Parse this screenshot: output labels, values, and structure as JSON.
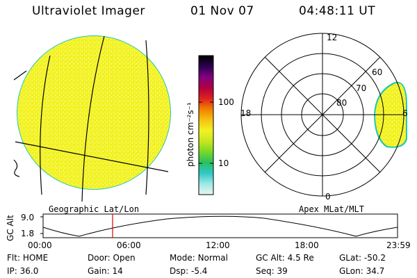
{
  "header": {
    "title": "Ultraviolet Imager",
    "date": "01 Nov 07",
    "time": "04:48:11 UT"
  },
  "colors": {
    "image_fill": "#f2f222",
    "image_edge": "#22c8b4",
    "grid_line": "#000000",
    "time_marker": "#e00000"
  },
  "geo_panel": {
    "label": "Geographic Lat/Lon"
  },
  "apex_panel": {
    "label": "Apex MLat/MLT",
    "mlt_labels": {
      "top": "12",
      "left": "18",
      "right": "6",
      "bottom": "0"
    },
    "mlat_labels": [
      "60",
      "70",
      "80"
    ]
  },
  "colorbar": {
    "unit_label": "photon cm⁻²s⁻¹",
    "ticks": [
      "100",
      "10"
    ],
    "stops": [
      "#e8f4f4",
      "#9ee8e4",
      "#30c8c8",
      "#28c060",
      "#78d828",
      "#c8e620",
      "#f2f222",
      "#f6c010",
      "#f08000",
      "#e02020",
      "#b00040",
      "#800080",
      "#2a0050",
      "#000000"
    ]
  },
  "altitude_plot": {
    "ylabel": "GC Alt",
    "ytick_top": "9.0",
    "ytick_bottom": "1.8",
    "xticks": [
      "00:00",
      "06:00",
      "12:00",
      "18:00",
      "23:59"
    ]
  },
  "info": {
    "row1": [
      {
        "label": "Flt:",
        "value": "HOME"
      },
      {
        "label": "Door:",
        "value": "Open"
      },
      {
        "label": "Mode:",
        "value": "Normal"
      },
      {
        "label": "GC Alt:",
        "value": "4.5 Re"
      },
      {
        "label": "GLat:",
        "value": "-50.2"
      }
    ],
    "row2": [
      {
        "label": "IP:",
        "value": "36.0"
      },
      {
        "label": "Gain:",
        "value": "14"
      },
      {
        "label": "Dsp:",
        "value": "-5.4"
      },
      {
        "label": "Seq:",
        "value": "39"
      },
      {
        "label": "GLon:",
        "value": "34.7"
      }
    ]
  }
}
